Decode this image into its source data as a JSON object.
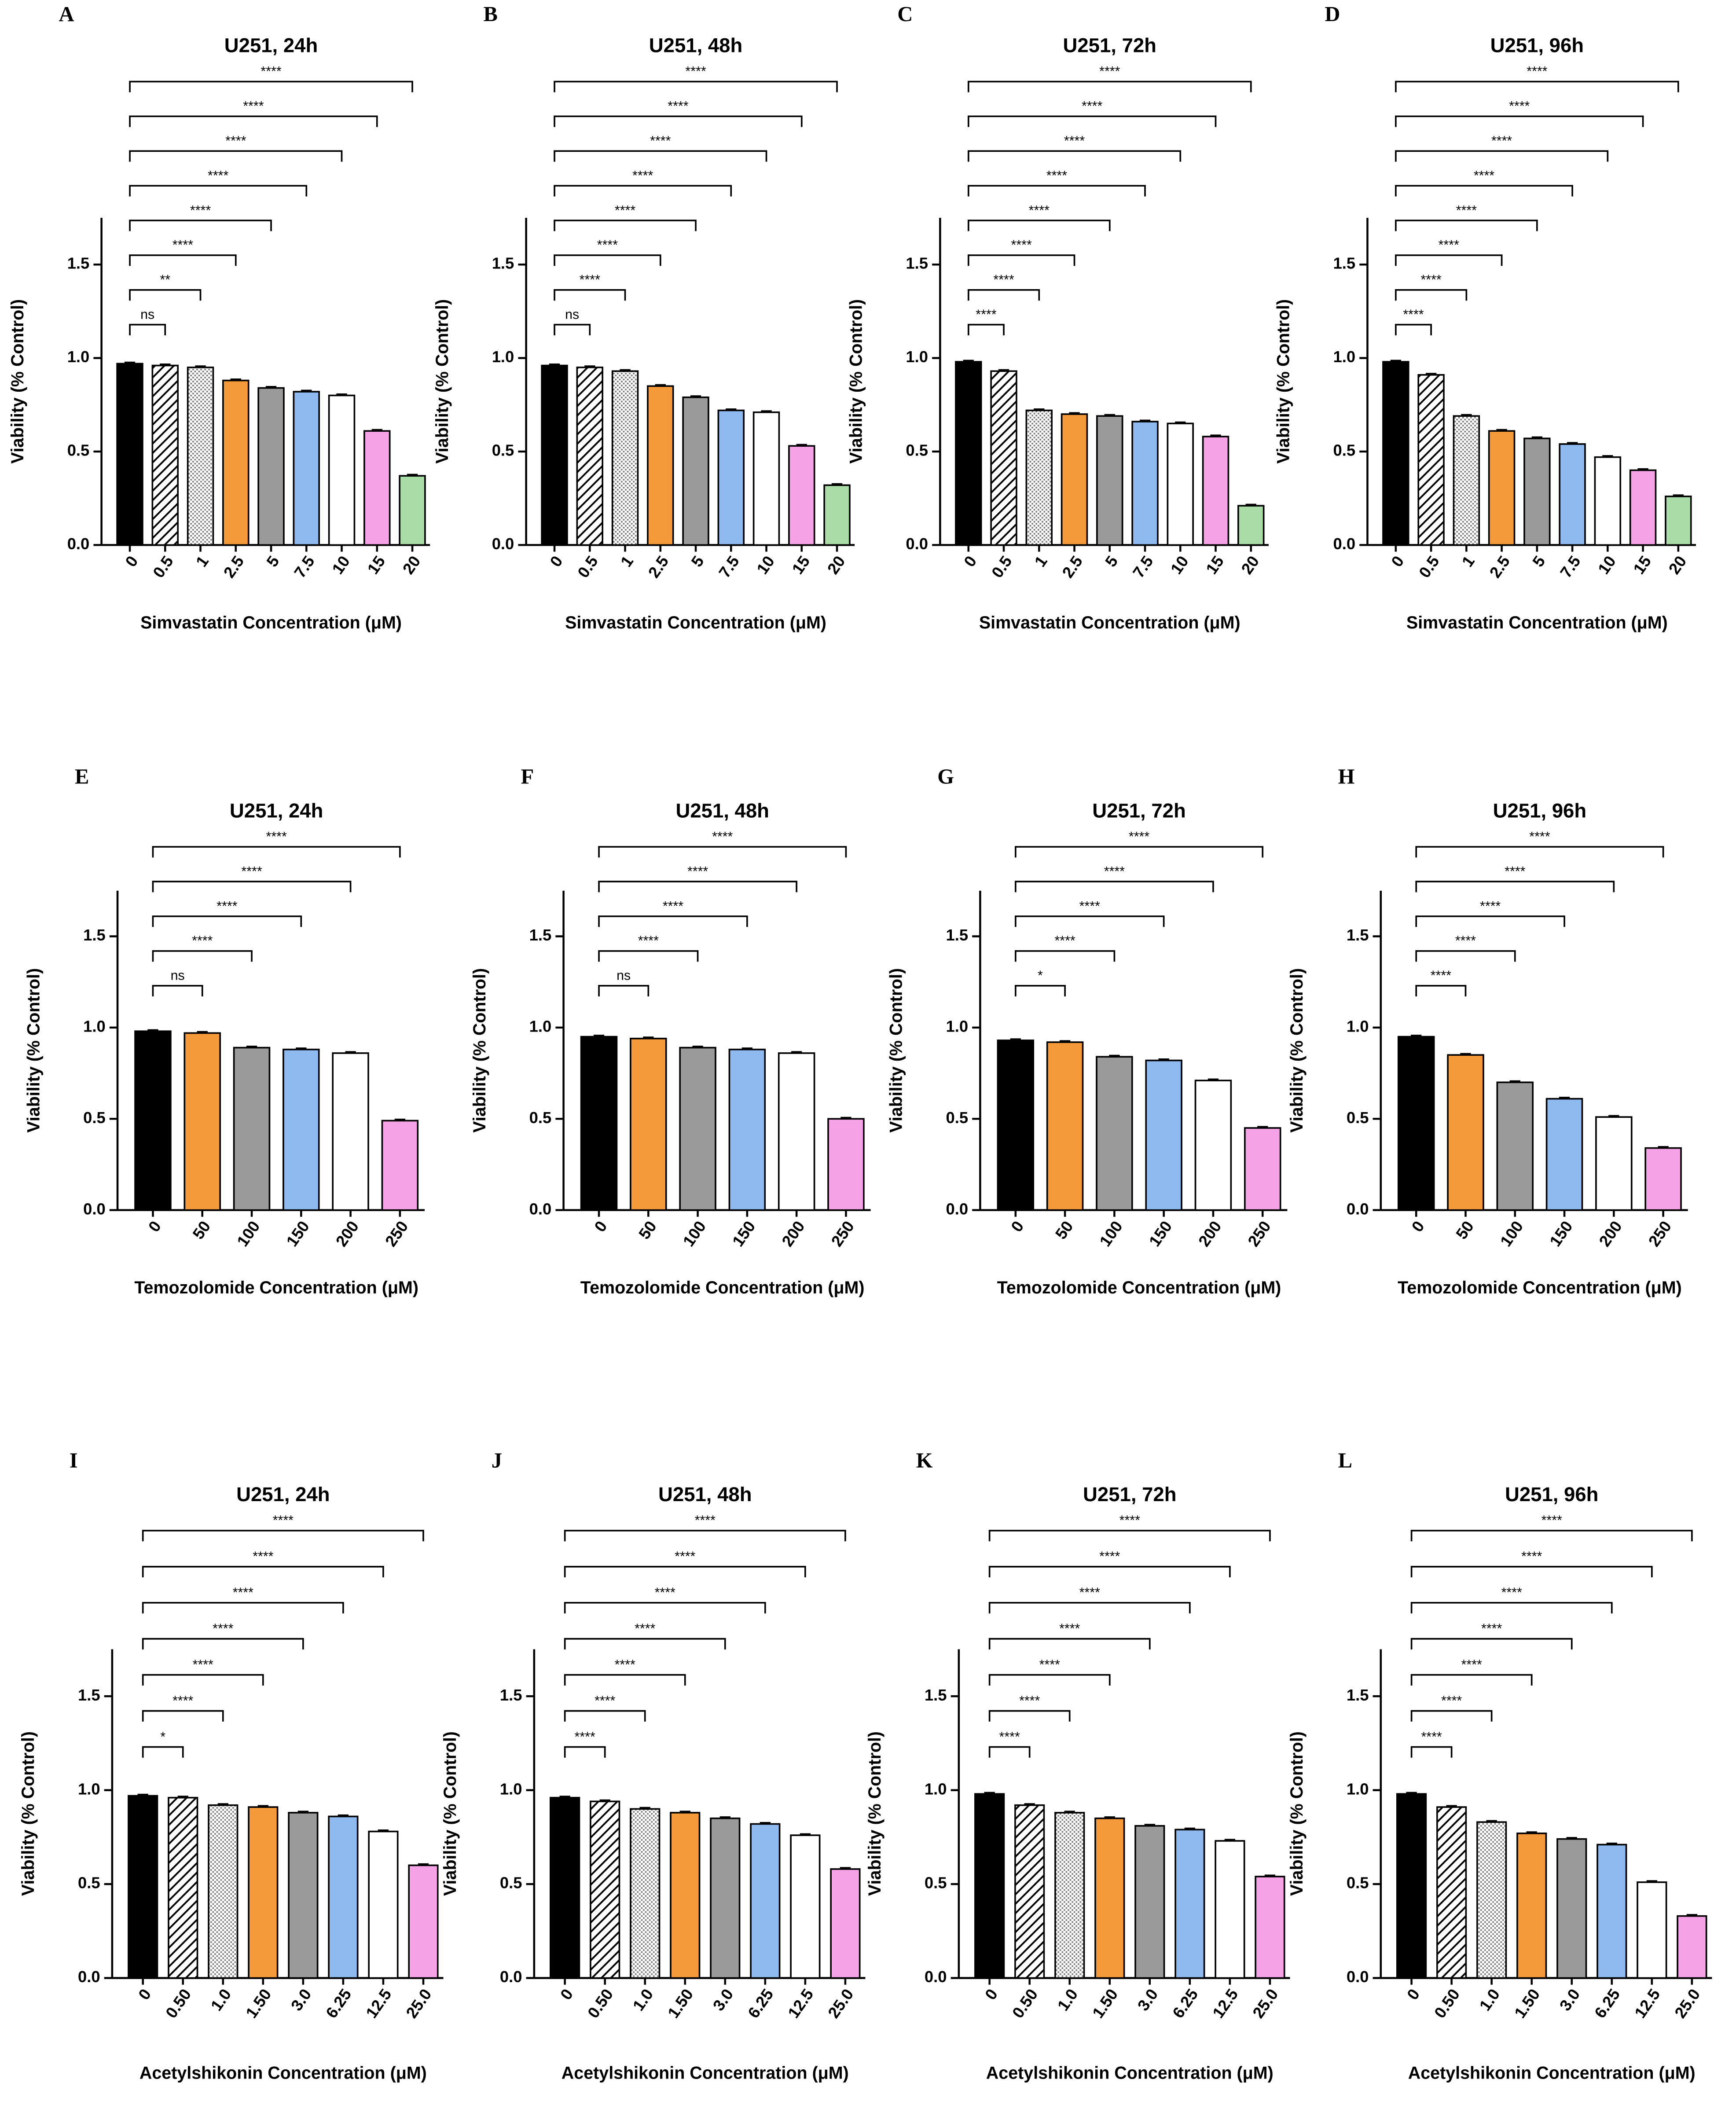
{
  "chart_data": [
    {
      "type": "bar",
      "panel": "A",
      "title": "U251, 24h",
      "x_label": "Simvastatin Concentration (μM)",
      "y_label": "Viability (% Control)",
      "categories": [
        "0",
        "0.5",
        "1",
        "2.5",
        "5",
        "7.5",
        "10",
        "15",
        "20"
      ],
      "values": [
        0.97,
        0.96,
        0.95,
        0.88,
        0.84,
        0.82,
        0.8,
        0.61,
        0.37
      ],
      "colors": [
        "#000000",
        "hatch",
        "dots",
        "#f59a3a",
        "#9a9a9a",
        "#8fbaf0",
        "#ffffff",
        "#f5a3e6",
        "#a9dca6"
      ],
      "significance": [
        null,
        "ns",
        "**",
        "****",
        "****",
        "****",
        "****",
        "****",
        "****"
      ],
      "ylim": [
        0,
        1.75
      ],
      "yticks": [
        {
          "value": 0,
          "label": "0.0"
        },
        0.5,
        {
          "value": 1,
          "label": "1.0"
        },
        1.5
      ]
    },
    {
      "type": "bar",
      "panel": "B",
      "title": "U251, 48h",
      "x_label": "Simvastatin Concentration (μM)",
      "y_label": "Viability (% Control)",
      "categories": [
        "0",
        "0.5",
        "1",
        "2.5",
        "5",
        "7.5",
        "10",
        "15",
        "20"
      ],
      "values": [
        0.96,
        0.95,
        0.93,
        0.85,
        0.79,
        0.72,
        0.71,
        0.53,
        0.32
      ],
      "colors": [
        "#000000",
        "hatch",
        "dots",
        "#f59a3a",
        "#9a9a9a",
        "#8fbaf0",
        "#ffffff",
        "#f5a3e6",
        "#a9dca6"
      ],
      "significance": [
        null,
        "ns",
        "****",
        "****",
        "****",
        "****",
        "****",
        "****",
        "****"
      ],
      "ylim": [
        0,
        1.75
      ],
      "yticks": [
        {
          "value": 0,
          "label": "0.0"
        },
        0.5,
        {
          "value": 1,
          "label": "1.0"
        },
        1.5
      ]
    },
    {
      "type": "bar",
      "panel": "C",
      "title": "U251, 72h",
      "x_label": "Simvastatin Concentration (μM)",
      "y_label": "Viability (% Control)",
      "categories": [
        "0",
        "0.5",
        "1",
        "2.5",
        "5",
        "7.5",
        "10",
        "15",
        "20"
      ],
      "values": [
        0.98,
        0.93,
        0.72,
        0.7,
        0.69,
        0.66,
        0.65,
        0.58,
        0.21
      ],
      "colors": [
        "#000000",
        "hatch",
        "dots",
        "#f59a3a",
        "#9a9a9a",
        "#8fbaf0",
        "#ffffff",
        "#f5a3e6",
        "#a9dca6"
      ],
      "significance": [
        null,
        "****",
        "****",
        "****",
        "****",
        "****",
        "****",
        "****",
        "****"
      ],
      "ylim": [
        0,
        1.75
      ],
      "yticks": [
        {
          "value": 0,
          "label": "0.0"
        },
        0.5,
        {
          "value": 1,
          "label": "1.0"
        },
        1.5
      ]
    },
    {
      "type": "bar",
      "panel": "D",
      "title": "U251, 96h",
      "x_label": "Simvastatin Concentration (μM)",
      "y_label": "Viability (% Control)",
      "categories": [
        "0",
        "0.5",
        "1",
        "2.5",
        "5",
        "7.5",
        "10",
        "15",
        "20"
      ],
      "values": [
        0.98,
        0.91,
        0.69,
        0.61,
        0.57,
        0.54,
        0.47,
        0.4,
        0.26
      ],
      "colors": [
        "#000000",
        "hatch",
        "dots",
        "#f59a3a",
        "#9a9a9a",
        "#8fbaf0",
        "#ffffff",
        "#f5a3e6",
        "#a9dca6"
      ],
      "significance": [
        null,
        "****",
        "****",
        "****",
        "****",
        "****",
        "****",
        "****",
        "****"
      ],
      "ylim": [
        0,
        1.75
      ],
      "yticks": [
        {
          "value": 0,
          "label": "0.0"
        },
        0.5,
        {
          "value": 1,
          "label": "1.0"
        },
        1.5
      ]
    },
    {
      "type": "bar",
      "panel": "E",
      "title": "U251, 24h",
      "x_label": "Temozolomide Concentration (μM)",
      "y_label": "Viability (% Control)",
      "categories": [
        "0",
        "50",
        "100",
        "150",
        "200",
        "250"
      ],
      "values": [
        0.98,
        0.97,
        0.89,
        0.88,
        0.86,
        0.49
      ],
      "colors": [
        "#000000",
        "#f59a3a",
        "#9a9a9a",
        "#8fbaf0",
        "#ffffff",
        "#f5a3e6"
      ],
      "significance": [
        null,
        "ns",
        "****",
        "****",
        "****",
        "****"
      ],
      "ylim": [
        0,
        1.75
      ],
      "yticks": [
        {
          "value": 0,
          "label": "0.0"
        },
        0.5,
        {
          "value": 1,
          "label": "1.0"
        },
        1.5
      ]
    },
    {
      "type": "bar",
      "panel": "F",
      "title": "U251, 48h",
      "x_label": "Temozolomide Concentration (μM)",
      "y_label": "Viability (% Control)",
      "categories": [
        "0",
        "50",
        "100",
        "150",
        "200",
        "250"
      ],
      "values": [
        0.95,
        0.94,
        0.89,
        0.88,
        0.86,
        0.5
      ],
      "colors": [
        "#000000",
        "#f59a3a",
        "#9a9a9a",
        "#8fbaf0",
        "#ffffff",
        "#f5a3e6"
      ],
      "significance": [
        null,
        "ns",
        "****",
        "****",
        "****",
        "****"
      ],
      "ylim": [
        0,
        1.75
      ],
      "yticks": [
        {
          "value": 0,
          "label": "0.0"
        },
        0.5,
        {
          "value": 1,
          "label": "1.0"
        },
        1.5
      ]
    },
    {
      "type": "bar",
      "panel": "G",
      "title": "U251, 72h",
      "x_label": "Temozolomide Concentration (μM)",
      "y_label": "Viability (% Control)",
      "categories": [
        "0",
        "50",
        "100",
        "150",
        "200",
        "250"
      ],
      "values": [
        0.93,
        0.92,
        0.84,
        0.82,
        0.71,
        0.45
      ],
      "colors": [
        "#000000",
        "#f59a3a",
        "#9a9a9a",
        "#8fbaf0",
        "#ffffff",
        "#f5a3e6"
      ],
      "significance": [
        null,
        "*",
        "****",
        "****",
        "****",
        "****"
      ],
      "ylim": [
        0,
        1.75
      ],
      "yticks": [
        {
          "value": 0,
          "label": "0.0"
        },
        0.5,
        {
          "value": 1,
          "label": "1.0"
        },
        1.5
      ]
    },
    {
      "type": "bar",
      "panel": "H",
      "title": "U251, 96h",
      "x_label": "Temozolomide Concentration (μM)",
      "y_label": "Viability (% Control)",
      "categories": [
        "0",
        "50",
        "100",
        "150",
        "200",
        "250"
      ],
      "values": [
        0.95,
        0.85,
        0.7,
        0.61,
        0.51,
        0.34
      ],
      "colors": [
        "#000000",
        "#f59a3a",
        "#9a9a9a",
        "#8fbaf0",
        "#ffffff",
        "#f5a3e6"
      ],
      "significance": [
        null,
        "****",
        "****",
        "****",
        "****",
        "****"
      ],
      "ylim": [
        0,
        1.75
      ],
      "yticks": [
        {
          "value": 0,
          "label": "0.0"
        },
        0.5,
        {
          "value": 1,
          "label": "1.0"
        },
        1.5
      ]
    },
    {
      "type": "bar",
      "panel": "I",
      "title": "U251, 24h",
      "x_label": "Acetylshikonin Concentration (μM)",
      "y_label": "Viability (% Control)",
      "categories": [
        "0",
        "0.50",
        "1.0",
        "1.50",
        "3.0",
        "6.25",
        "12.5",
        "25.0"
      ],
      "values": [
        0.97,
        0.96,
        0.92,
        0.91,
        0.88,
        0.86,
        0.78,
        0.6
      ],
      "colors": [
        "#000000",
        "hatch",
        "dots",
        "#f59a3a",
        "#9a9a9a",
        "#8fbaf0",
        "#ffffff",
        "#f5a3e6"
      ],
      "significance": [
        null,
        "*",
        "****",
        "****",
        "****",
        "****",
        "****",
        "****"
      ],
      "ylim": [
        0,
        1.75
      ],
      "yticks": [
        {
          "value": 0,
          "label": "0.0"
        },
        0.5,
        {
          "value": 1,
          "label": "1.0"
        },
        1.5
      ]
    },
    {
      "type": "bar",
      "panel": "J",
      "title": "U251, 48h",
      "x_label": "Acetylshikonin Concentration (μM)",
      "y_label": "Viability (% Control)",
      "categories": [
        "0",
        "0.50",
        "1.0",
        "1.50",
        "3.0",
        "6.25",
        "12.5",
        "25.0"
      ],
      "values": [
        0.96,
        0.94,
        0.9,
        0.88,
        0.85,
        0.82,
        0.76,
        0.58
      ],
      "colors": [
        "#000000",
        "hatch",
        "dots",
        "#f59a3a",
        "#9a9a9a",
        "#8fbaf0",
        "#ffffff",
        "#f5a3e6"
      ],
      "significance": [
        null,
        "****",
        "****",
        "****",
        "****",
        "****",
        "****",
        "****"
      ],
      "ylim": [
        0,
        1.75
      ],
      "yticks": [
        {
          "value": 0,
          "label": "0.0"
        },
        0.5,
        {
          "value": 1,
          "label": "1.0"
        },
        1.5
      ]
    },
    {
      "type": "bar",
      "panel": "K",
      "title": "U251, 72h",
      "x_label": "Acetylshikonin Concentration (μM)",
      "y_label": "Viability (% Control)",
      "categories": [
        "0",
        "0.50",
        "1.0",
        "1.50",
        "3.0",
        "6.25",
        "12.5",
        "25.0"
      ],
      "values": [
        0.98,
        0.92,
        0.88,
        0.85,
        0.81,
        0.79,
        0.73,
        0.54
      ],
      "colors": [
        "#000000",
        "hatch",
        "dots",
        "#f59a3a",
        "#9a9a9a",
        "#8fbaf0",
        "#ffffff",
        "#f5a3e6"
      ],
      "significance": [
        null,
        "****",
        "****",
        "****",
        "****",
        "****",
        "****",
        "****"
      ],
      "ylim": [
        0,
        1.75
      ],
      "yticks": [
        {
          "value": 0,
          "label": "0.0"
        },
        0.5,
        {
          "value": 1,
          "label": "1.0"
        },
        1.5
      ]
    },
    {
      "type": "bar",
      "panel": "L",
      "title": "U251, 96h",
      "x_label": "Acetylshikonin Concentration (μM)",
      "y_label": "Viability (% Control)",
      "categories": [
        "0",
        "0.50",
        "1.0",
        "1.50",
        "3.0",
        "6.25",
        "12.5",
        "25.0"
      ],
      "values": [
        0.98,
        0.91,
        0.83,
        0.77,
        0.74,
        0.71,
        0.51,
        0.33
      ],
      "colors": [
        "#000000",
        "hatch",
        "dots",
        "#f59a3a",
        "#9a9a9a",
        "#8fbaf0",
        "#ffffff",
        "#f5a3e6"
      ],
      "significance": [
        null,
        "****",
        "****",
        "****",
        "****",
        "****",
        "****",
        "****"
      ],
      "ylim": [
        0,
        1.75
      ],
      "yticks": [
        {
          "value": 0,
          "label": "0.0"
        },
        0.5,
        {
          "value": 1,
          "label": "1.0"
        },
        1.5
      ]
    }
  ]
}
